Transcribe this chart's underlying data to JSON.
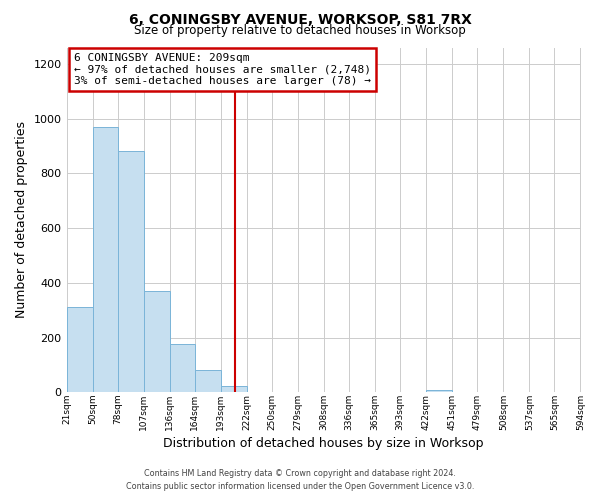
{
  "title": "6, CONINGSBY AVENUE, WORKSOP, S81 7RX",
  "subtitle": "Size of property relative to detached houses in Worksop",
  "xlabel": "Distribution of detached houses by size in Worksop",
  "ylabel": "Number of detached properties",
  "bar_color": "#c6dff0",
  "bar_edge_color": "#7ab4d8",
  "background_color": "#ffffff",
  "grid_color": "#cccccc",
  "vline_x": 209,
  "vline_color": "#cc0000",
  "annotation_box_text": "6 CONINGSBY AVENUE: 209sqm\n← 97% of detached houses are smaller (2,748)\n3% of semi-detached houses are larger (78) →",
  "annotation_box_edge_color": "#cc0000",
  "bin_edges": [
    21,
    50,
    78,
    107,
    136,
    164,
    193,
    222,
    250,
    279,
    308,
    336,
    365,
    393,
    422,
    451,
    479,
    508,
    537,
    565,
    594
  ],
  "bin_heights": [
    310,
    970,
    880,
    370,
    175,
    80,
    22,
    0,
    0,
    0,
    0,
    0,
    0,
    0,
    10,
    0,
    0,
    0,
    0,
    0
  ],
  "ylim": [
    0,
    1260
  ],
  "yticks": [
    0,
    200,
    400,
    600,
    800,
    1000,
    1200
  ],
  "footnote": "Contains HM Land Registry data © Crown copyright and database right 2024.\nContains public sector information licensed under the Open Government Licence v3.0."
}
